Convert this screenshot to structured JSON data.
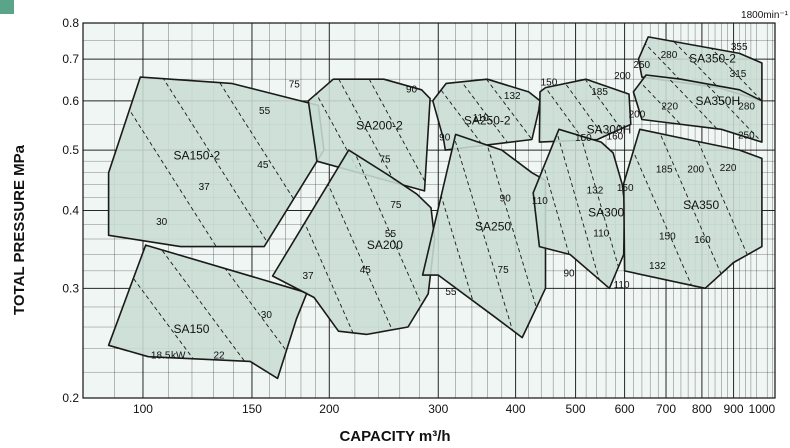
{
  "chart_data": {
    "type": "area",
    "title": "",
    "speed_note": "1800min⁻¹",
    "xlabel": "CAPACITY   m³/h",
    "ylabel": "TOTAL PRESSURE   MPa",
    "x_scale": "log",
    "y_scale": "log",
    "xlim": [
      80,
      1050
    ],
    "ylim": [
      0.2,
      0.8
    ],
    "grid": true,
    "x_ticks": [
      {
        "value": 100,
        "label": "100"
      },
      {
        "value": 150,
        "label": "150"
      },
      {
        "value": 200,
        "label": "200"
      },
      {
        "value": 300,
        "label": "300"
      },
      {
        "value": 400,
        "label": "400"
      },
      {
        "value": 500,
        "label": "500"
      },
      {
        "value": 600,
        "label": "600"
      },
      {
        "value": 700,
        "label": "700"
      },
      {
        "value": 800,
        "label": "800"
      },
      {
        "value": 900,
        "label": "900"
      },
      {
        "value": 1000,
        "label": "1000"
      }
    ],
    "y_ticks": [
      {
        "value": 0.2,
        "label": "0.2"
      },
      {
        "value": 0.3,
        "label": "0.3"
      },
      {
        "value": 0.4,
        "label": "0.4"
      },
      {
        "value": 0.5,
        "label": "0.5"
      },
      {
        "value": 0.6,
        "label": "0.6"
      },
      {
        "value": 0.7,
        "label": "0.7"
      },
      {
        "value": 0.8,
        "label": "0.8"
      }
    ],
    "regions": [
      {
        "name": "SA150-2",
        "label_at": [
          112,
          0.49
        ],
        "polygon": [
          [
            88,
            0.46
          ],
          [
            99,
            0.655
          ],
          [
            139,
            0.64
          ],
          [
            192,
            0.59
          ],
          [
            196,
            0.5
          ],
          [
            157,
            0.35
          ],
          [
            115,
            0.35
          ],
          [
            88,
            0.365
          ]
        ]
      },
      {
        "name": "SA150",
        "label_at": [
          112,
          0.258
        ],
        "polygon": [
          [
            88,
            0.243
          ],
          [
            101,
            0.352
          ],
          [
            174,
            0.3
          ],
          [
            184,
            0.295
          ],
          [
            177,
            0.268
          ],
          [
            165,
            0.215
          ],
          [
            149,
            0.229
          ],
          [
            102,
            0.233
          ]
        ]
      },
      {
        "name": "SA200-2",
        "label_at": [
          221,
          0.548
        ],
        "polygon": [
          [
            185,
            0.6
          ],
          [
            203,
            0.65
          ],
          [
            245,
            0.65
          ],
          [
            282,
            0.625
          ],
          [
            291,
            0.605
          ],
          [
            285,
            0.43
          ],
          [
            191,
            0.48
          ],
          [
            190,
            0.5
          ]
        ]
      },
      {
        "name": "SA200",
        "label_at": [
          230,
          0.352
        ],
        "polygon": [
          [
            162,
            0.314
          ],
          [
            215,
            0.5
          ],
          [
            250,
            0.455
          ],
          [
            277,
            0.425
          ],
          [
            292,
            0.404
          ],
          [
            296,
            0.36
          ],
          [
            289,
            0.294
          ],
          [
            268,
            0.26
          ],
          [
            230,
            0.253
          ],
          [
            207,
            0.256
          ],
          [
            189,
            0.29
          ]
        ]
      },
      {
        "name": "SA250-2",
        "label_at": [
          330,
          0.558
        ],
        "polygon": [
          [
            294,
            0.6
          ],
          [
            309,
            0.64
          ],
          [
            360,
            0.65
          ],
          [
            420,
            0.62
          ],
          [
            438,
            0.6
          ],
          [
            436,
            0.58
          ],
          [
            425,
            0.52
          ],
          [
            308,
            0.5
          ],
          [
            306,
            0.52
          ]
        ]
      },
      {
        "name": "SA250",
        "label_at": [
          344,
          0.377
        ],
        "polygon": [
          [
            283,
            0.315
          ],
          [
            320,
            0.53
          ],
          [
            380,
            0.5
          ],
          [
            425,
            0.46
          ],
          [
            447,
            0.447
          ],
          [
            447,
            0.3
          ],
          [
            410,
            0.25
          ],
          [
            370,
            0.27
          ],
          [
            300,
            0.315
          ]
        ]
      },
      {
        "name": "SA300H",
        "label_at": [
          521,
          0.54
        ],
        "polygon": [
          [
            438,
            0.62
          ],
          [
            447,
            0.63
          ],
          [
            520,
            0.65
          ],
          [
            610,
            0.615
          ],
          [
            614,
            0.55
          ],
          [
            542,
            0.52
          ],
          [
            437,
            0.515
          ]
        ]
      },
      {
        "name": "SA300",
        "label_at": [
          524,
          0.397
        ],
        "polygon": [
          [
            427,
            0.427
          ],
          [
            470,
            0.54
          ],
          [
            550,
            0.515
          ],
          [
            575,
            0.495
          ],
          [
            595,
            0.44
          ],
          [
            600,
            0.41
          ],
          [
            598,
            0.34
          ],
          [
            567,
            0.3
          ],
          [
            490,
            0.34
          ],
          [
            437,
            0.35
          ]
        ]
      },
      {
        "name": "SA350-2",
        "label_at": [
          763,
          0.702
        ],
        "polygon": [
          [
            632,
            0.7
          ],
          [
            655,
            0.76
          ],
          [
            760,
            0.74
          ],
          [
            920,
            0.715
          ],
          [
            1000,
            0.69
          ],
          [
            1000,
            0.6
          ],
          [
            850,
            0.63
          ],
          [
            640,
            0.655
          ]
        ]
      },
      {
        "name": "SA350H",
        "label_at": [
          781,
          0.6
        ],
        "polygon": [
          [
            620,
            0.62
          ],
          [
            650,
            0.66
          ],
          [
            740,
            0.65
          ],
          [
            920,
            0.625
          ],
          [
            1000,
            0.6
          ],
          [
            1000,
            0.515
          ],
          [
            860,
            0.54
          ],
          [
            640,
            0.56
          ]
        ]
      },
      {
        "name": "SA350",
        "label_at": [
          746,
          0.408
        ],
        "polygon": [
          [
            598,
            0.442
          ],
          [
            635,
            0.54
          ],
          [
            760,
            0.52
          ],
          [
            920,
            0.5
          ],
          [
            1000,
            0.485
          ],
          [
            1000,
            0.35
          ],
          [
            900,
            0.33
          ],
          [
            810,
            0.3
          ],
          [
            600,
            0.32
          ]
        ]
      }
    ],
    "kw_labels": [
      {
        "text": "75",
        "at": [
          172,
          0.64
        ]
      },
      {
        "text": "55",
        "at": [
          154,
          0.58
        ]
      },
      {
        "text": "45",
        "at": [
          153,
          0.475
        ]
      },
      {
        "text": "37",
        "at": [
          123,
          0.438
        ]
      },
      {
        "text": "30",
        "at": [
          105,
          0.385
        ]
      },
      {
        "text": "37",
        "at": [
          181,
          0.315
        ]
      },
      {
        "text": "30",
        "at": [
          155,
          0.273
        ]
      },
      {
        "text": "22",
        "at": [
          130,
          0.235
        ]
      },
      {
        "text": "18.5",
        "at": [
          103,
          0.235
        ]
      },
      {
        "text": "kW",
        "at": [
          111,
          0.235
        ]
      },
      {
        "text": "90",
        "at": [
          266,
          0.628
        ]
      },
      {
        "text": "75",
        "at": [
          241,
          0.485
        ]
      },
      {
        "text": "75",
        "at": [
          251,
          0.41
        ]
      },
      {
        "text": "55",
        "at": [
          246,
          0.368
        ]
      },
      {
        "text": "45",
        "at": [
          224,
          0.322
        ]
      },
      {
        "text": "132",
        "at": [
          383,
          0.613
        ]
      },
      {
        "text": "110",
        "at": [
          341,
          0.565
        ]
      },
      {
        "text": "90",
        "at": [
          301,
          0.526
        ]
      },
      {
        "text": "90",
        "at": [
          377,
          0.42
        ]
      },
      {
        "text": "110",
        "at": [
          425,
          0.416
        ]
      },
      {
        "text": "75",
        "at": [
          374,
          0.322
        ]
      },
      {
        "text": "55",
        "at": [
          308,
          0.297
        ]
      },
      {
        "text": "150",
        "at": [
          439,
          0.645
        ]
      },
      {
        "text": "200",
        "at": [
          577,
          0.66
        ]
      },
      {
        "text": "185",
        "at": [
          530,
          0.622
        ]
      },
      {
        "text": "150",
        "at": [
          499,
          0.525
        ]
      },
      {
        "text": "160",
        "at": [
          561,
          0.528
        ]
      },
      {
        "text": "200",
        "at": [
          609,
          0.572
        ]
      },
      {
        "text": "132",
        "at": [
          521,
          0.432
        ]
      },
      {
        "text": "150",
        "at": [
          583,
          0.436
        ]
      },
      {
        "text": "110",
        "at": [
          534,
          0.369
        ]
      },
      {
        "text": "90",
        "at": [
          478,
          0.318
        ]
      },
      {
        "text": "110",
        "at": [
          576,
          0.305
        ]
      },
      {
        "text": "355",
        "at": [
          891,
          0.735
        ]
      },
      {
        "text": "280",
        "at": [
          686,
          0.714
        ]
      },
      {
        "text": "250",
        "at": [
          620,
          0.687
        ]
      },
      {
        "text": "315",
        "at": [
          887,
          0.665
        ]
      },
      {
        "text": "220",
        "at": [
          688,
          0.59
        ]
      },
      {
        "text": "280",
        "at": [
          916,
          0.59
        ]
      },
      {
        "text": "250",
        "at": [
          915,
          0.53
        ]
      },
      {
        "text": "185",
        "at": [
          674,
          0.467
        ]
      },
      {
        "text": "200",
        "at": [
          758,
          0.467
        ]
      },
      {
        "text": "220",
        "at": [
          855,
          0.47
        ]
      },
      {
        "text": "150",
        "at": [
          682,
          0.365
        ]
      },
      {
        "text": "160",
        "at": [
          777,
          0.36
        ]
      },
      {
        "text": "132",
        "at": [
          657,
          0.327
        ]
      }
    ],
    "colors": {
      "fill": "#c8ddd4",
      "stroke": "#1a1a1a",
      "grid": "#111111",
      "plot_background": "#f0f6f3",
      "accent_tab": "#5aa58a"
    }
  }
}
